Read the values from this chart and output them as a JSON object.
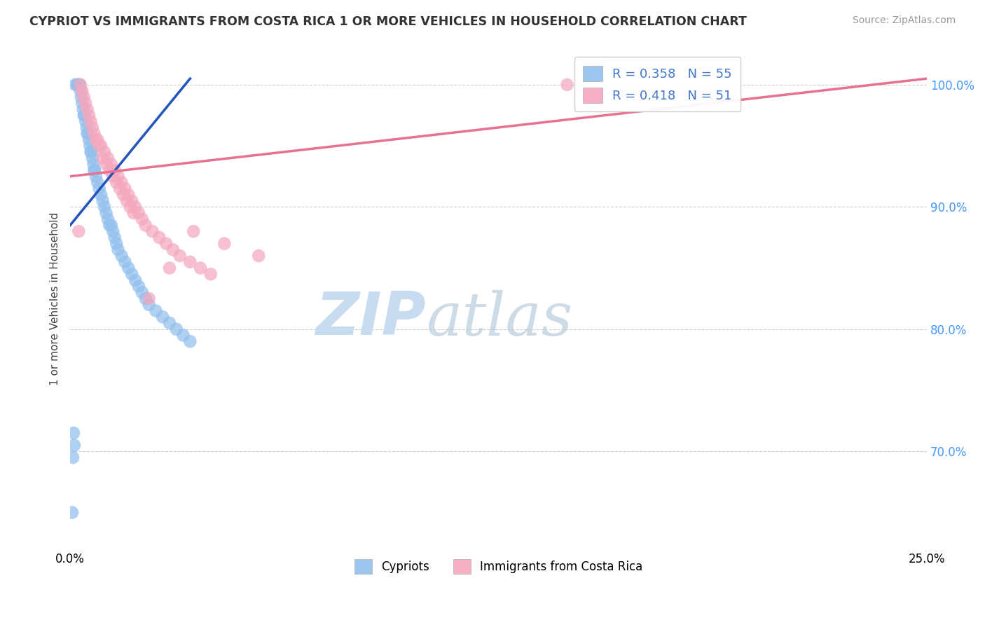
{
  "title": "CYPRIOT VS IMMIGRANTS FROM COSTA RICA 1 OR MORE VEHICLES IN HOUSEHOLD CORRELATION CHART",
  "source": "Source: ZipAtlas.com",
  "ylabel": "1 or more Vehicles in Household",
  "ytick_labels": [
    "70.0%",
    "80.0%",
    "90.0%",
    "100.0%"
  ],
  "ytick_values": [
    70.0,
    80.0,
    90.0,
    100.0
  ],
  "xmin": 0.0,
  "xmax": 25.0,
  "ymin": 62.0,
  "ymax": 103.0,
  "r_cypriot": 0.358,
  "n_cypriot": 55,
  "r_costarica": 0.418,
  "n_costarica": 51,
  "color_cypriot": "#92C0ED",
  "color_costarica": "#F4A8BF",
  "line_color_cypriot": "#2255BB",
  "line_color_costarica": "#E87090",
  "legend_label_cypriot": "Cypriots",
  "legend_label_costarica": "Immigrants from Costa Rica",
  "cypriot_x": [
    0.15,
    0.2,
    0.25,
    0.28,
    0.3,
    0.32,
    0.35,
    0.38,
    0.4,
    0.42,
    0.45,
    0.48,
    0.5,
    0.52,
    0.55,
    0.58,
    0.6,
    0.62,
    0.65,
    0.68,
    0.7,
    0.72,
    0.75,
    0.8,
    0.85,
    0.9,
    0.95,
    1.0,
    1.05,
    1.1,
    1.15,
    1.2,
    1.25,
    1.3,
    1.35,
    1.4,
    1.5,
    1.6,
    1.7,
    1.8,
    1.9,
    2.0,
    2.1,
    2.2,
    2.3,
    2.5,
    2.7,
    2.9,
    3.1,
    3.3,
    3.5,
    0.1,
    0.12,
    0.08,
    0.06
  ],
  "cypriot_y": [
    100.0,
    100.0,
    100.0,
    100.0,
    99.5,
    99.0,
    98.5,
    98.0,
    97.5,
    97.5,
    97.0,
    96.5,
    96.0,
    96.0,
    95.5,
    95.0,
    94.5,
    94.5,
    94.0,
    93.5,
    93.0,
    93.0,
    92.5,
    92.0,
    91.5,
    91.0,
    90.5,
    90.0,
    89.5,
    89.0,
    88.5,
    88.5,
    88.0,
    87.5,
    87.0,
    86.5,
    86.0,
    85.5,
    85.0,
    84.5,
    84.0,
    83.5,
    83.0,
    82.5,
    82.0,
    81.5,
    81.0,
    80.5,
    80.0,
    79.5,
    79.0,
    71.5,
    70.5,
    69.5,
    65.0
  ],
  "costarica_x": [
    0.3,
    0.35,
    0.4,
    0.45,
    0.5,
    0.55,
    0.6,
    0.65,
    0.7,
    0.8,
    0.9,
    1.0,
    1.1,
    1.2,
    1.3,
    1.4,
    1.5,
    1.6,
    1.7,
    1.8,
    1.9,
    2.0,
    2.1,
    2.2,
    2.4,
    2.6,
    2.8,
    3.0,
    3.2,
    3.5,
    3.8,
    4.1,
    0.75,
    0.85,
    0.95,
    1.05,
    1.15,
    1.25,
    1.35,
    1.45,
    1.55,
    1.65,
    1.75,
    1.85,
    0.25,
    14.5,
    5.5,
    4.5,
    3.6,
    2.9,
    2.3
  ],
  "costarica_y": [
    100.0,
    99.5,
    99.0,
    98.5,
    98.0,
    97.5,
    97.0,
    96.5,
    96.0,
    95.5,
    95.0,
    94.5,
    94.0,
    93.5,
    93.0,
    92.5,
    92.0,
    91.5,
    91.0,
    90.5,
    90.0,
    89.5,
    89.0,
    88.5,
    88.0,
    87.5,
    87.0,
    86.5,
    86.0,
    85.5,
    85.0,
    84.5,
    95.5,
    95.0,
    94.0,
    93.5,
    93.0,
    92.5,
    92.0,
    91.5,
    91.0,
    90.5,
    90.0,
    89.5,
    88.0,
    100.0,
    86.0,
    87.0,
    88.0,
    85.0,
    82.5
  ],
  "trendline_cypriot_x0": 0.0,
  "trendline_cypriot_y0": 88.5,
  "trendline_cypriot_x1": 3.5,
  "trendline_cypriot_y1": 100.5,
  "trendline_cr_x0": 0.0,
  "trendline_cr_y0": 92.5,
  "trendline_cr_x1": 25.0,
  "trendline_cr_y1": 100.5,
  "grid_color": "#CCCCCC",
  "background_color": "#FFFFFF"
}
